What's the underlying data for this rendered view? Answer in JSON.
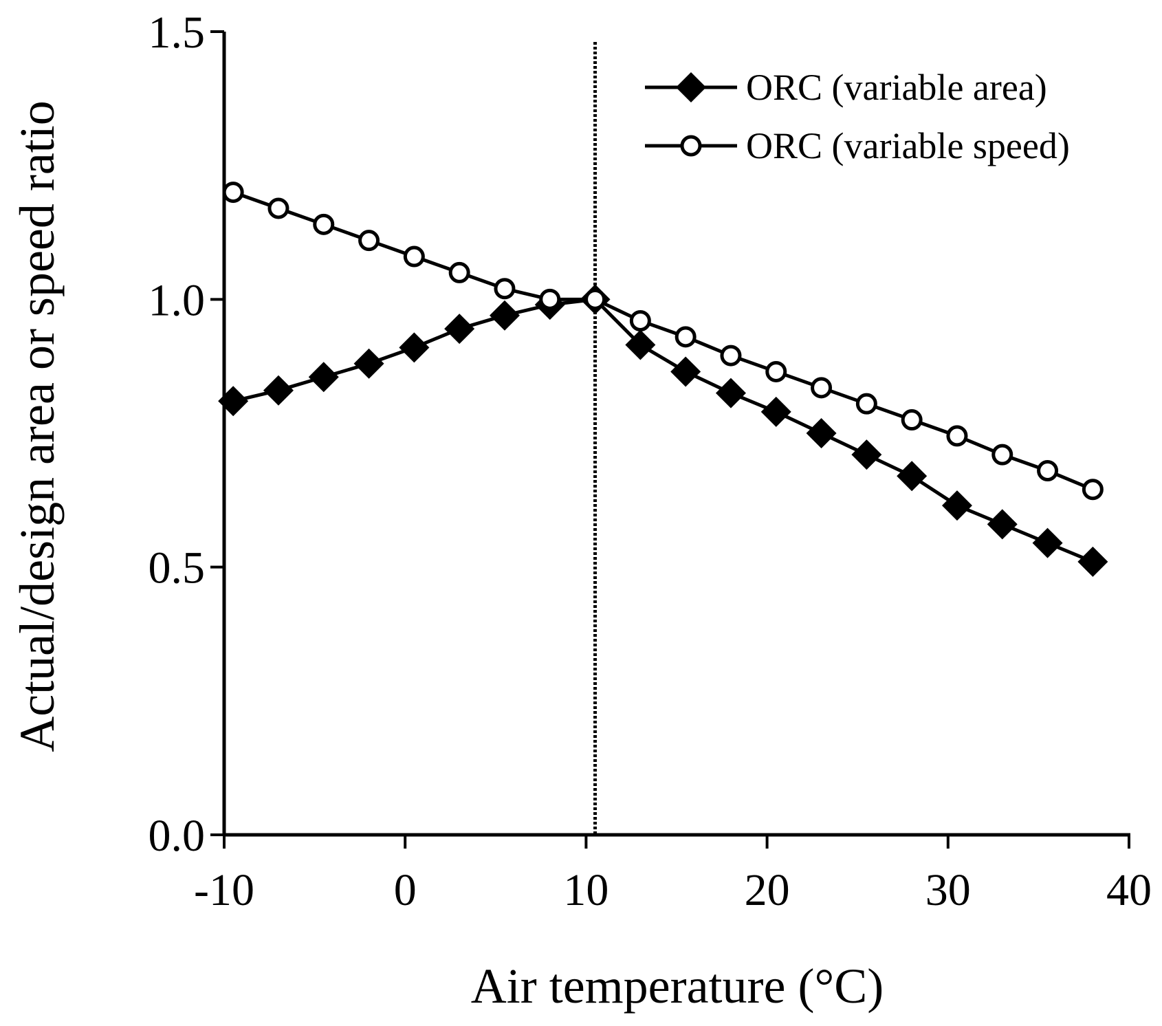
{
  "chart_data": {
    "type": "line",
    "title": "",
    "xlabel": "Air temperature (°C)",
    "ylabel": "Actual/design area or speed ratio",
    "xlim": [
      -10,
      40
    ],
    "ylim": [
      0.0,
      1.5
    ],
    "xticks": [
      -10,
      0,
      10,
      20,
      30,
      40
    ],
    "xtick_labels": [
      "-10",
      "0",
      "10",
      "20",
      "30",
      "40"
    ],
    "yticks": [
      0.0,
      0.5,
      1.0,
      1.5
    ],
    "ytick_labels": [
      "0.0",
      "0.5",
      "1.0",
      "1.5"
    ],
    "grid": false,
    "legend_position": "top-right",
    "reference_line": {
      "orientation": "vertical",
      "x": 10.5,
      "style": "dotted"
    },
    "x": [
      -9.5,
      -7,
      -4.5,
      -2,
      0.5,
      3,
      5.5,
      8,
      10.5,
      13,
      15.5,
      18,
      20.5,
      23,
      25.5,
      28,
      30.5,
      33,
      35.5,
      38
    ],
    "series": [
      {
        "name": "ORC (variable area)",
        "marker": "filled-diamond",
        "values": [
          0.81,
          0.83,
          0.855,
          0.88,
          0.91,
          0.945,
          0.97,
          0.99,
          1.0,
          0.915,
          0.865,
          0.825,
          0.79,
          0.75,
          0.71,
          0.67,
          0.615,
          0.58,
          0.545,
          0.51
        ]
      },
      {
        "name": "ORC (variable speed)",
        "marker": "open-circle",
        "values": [
          1.2,
          1.17,
          1.14,
          1.11,
          1.08,
          1.05,
          1.02,
          1.0,
          1.0,
          0.96,
          0.93,
          0.895,
          0.865,
          0.835,
          0.805,
          0.775,
          0.745,
          0.71,
          0.68,
          0.645
        ]
      }
    ]
  }
}
